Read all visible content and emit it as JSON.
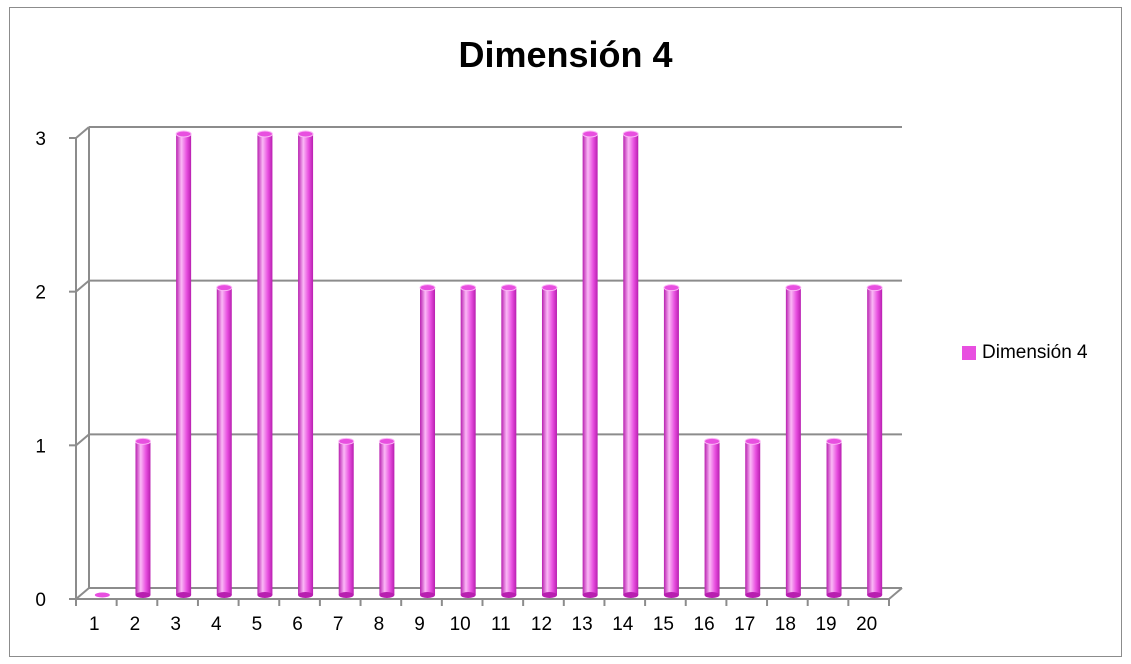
{
  "colors": {
    "bar_main": "#e84fe0",
    "bar_light": "#fbb8f6",
    "bar_dark": "#b81fb0",
    "grid": "#8c8c8c"
  },
  "chart_data": {
    "type": "bar",
    "title": "Dimensión 4",
    "xlabel": "",
    "ylabel": "",
    "categories": [
      "1",
      "2",
      "3",
      "4",
      "5",
      "6",
      "7",
      "8",
      "9",
      "10",
      "11",
      "12",
      "13",
      "14",
      "15",
      "16",
      "17",
      "18",
      "19",
      "20"
    ],
    "series": [
      {
        "name": "Dimensión 4",
        "values": [
          0,
          1,
          3,
          2,
          3,
          3,
          1,
          1,
          2,
          2,
          2,
          2,
          3,
          3,
          2,
          1,
          1,
          2,
          1,
          2
        ]
      }
    ],
    "ylim": [
      0,
      3
    ],
    "yticks": [
      "0",
      "1",
      "2",
      "3"
    ],
    "grid": true,
    "legend_position": "right"
  }
}
